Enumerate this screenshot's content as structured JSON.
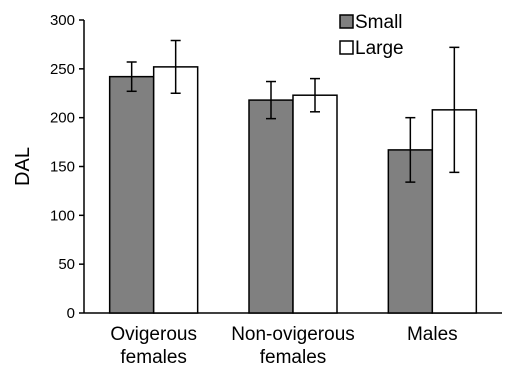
{
  "chart_data": {
    "type": "bar",
    "title": "",
    "xlabel": "",
    "ylabel": "DAL",
    "ylim": [
      0,
      300
    ],
    "yticks": [
      0,
      50,
      100,
      150,
      200,
      250,
      300
    ],
    "grid": false,
    "legend_position": "top-right",
    "categories": [
      [
        "Ovigerous",
        "females"
      ],
      [
        "Non-ovigerous",
        "females"
      ],
      [
        "Males"
      ]
    ],
    "series": [
      {
        "name": "Small",
        "color": "#808080",
        "values": [
          242,
          218,
          167
        ],
        "error": [
          15,
          19,
          33
        ]
      },
      {
        "name": "Large",
        "color": "#ffffff",
        "values": [
          252,
          223,
          208
        ],
        "error": [
          27,
          17,
          64
        ]
      }
    ]
  }
}
